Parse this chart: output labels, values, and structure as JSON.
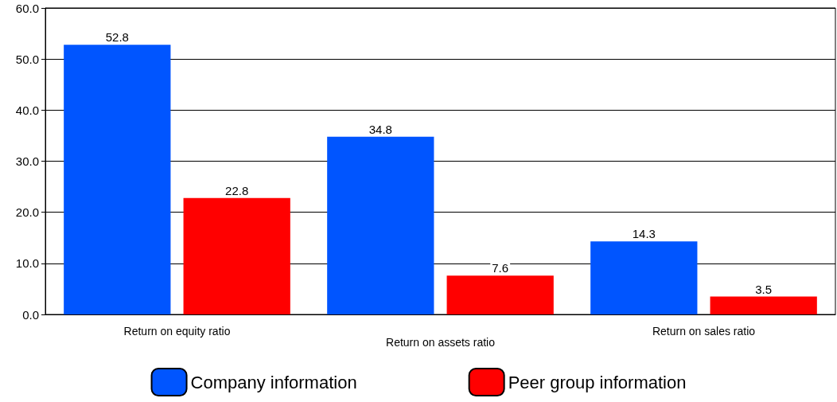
{
  "chart_data": {
    "type": "bar",
    "categories": [
      "Return on equity ratio",
      "Return on assets ratio",
      "Return on sales ratio"
    ],
    "series": [
      {
        "name": "Company information",
        "color": "#0055ff",
        "values": [
          52.8,
          34.8,
          14.3
        ]
      },
      {
        "name": "Peer group information",
        "color": "#ff0000",
        "values": [
          22.8,
          7.6,
          3.5
        ]
      }
    ],
    "ylim": [
      0,
      60
    ],
    "yticks": [
      {
        "value": 0,
        "label": "0.0"
      },
      {
        "value": 10,
        "label": "10.0"
      },
      {
        "value": 20,
        "label": "20.0"
      },
      {
        "value": 30,
        "label": "30.0"
      },
      {
        "value": 40,
        "label": "40.0"
      },
      {
        "value": 50,
        "label": "50.0"
      },
      {
        "value": 60,
        "label": "60.0"
      }
    ],
    "grid": "y",
    "legend": "bottom",
    "data_labels": true
  }
}
